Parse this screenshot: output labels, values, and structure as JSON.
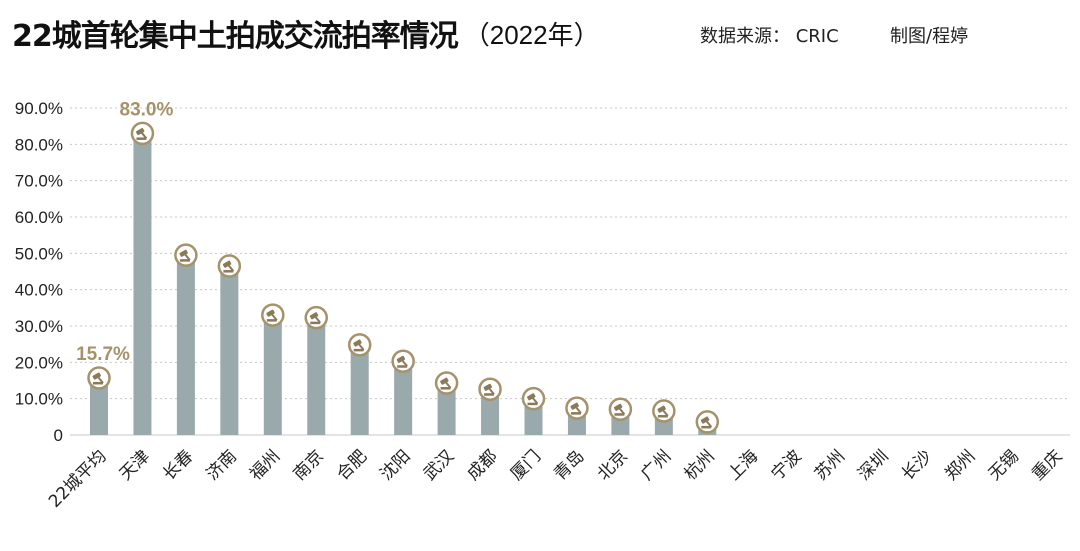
{
  "header": {
    "title": "22城首轮集中土拍成交流拍率情况",
    "year": "（2022年）",
    "source": "数据来源： CRIC",
    "author": "制图/程婷"
  },
  "colors": {
    "bar": "#9aa9ab",
    "highlight_label": "#a6926a",
    "marker_fill": "#ffffff",
    "marker_ring": "#a6926a",
    "marker_icon": "#8a7a5a",
    "grid": "#c8c8c8",
    "axis_text": "#222222"
  },
  "chart_data": {
    "type": "bar",
    "categories": [
      "22城平均",
      "天津",
      "长春",
      "济南",
      "福州",
      "南京",
      "合肥",
      "沈阳",
      "武汉",
      "成都",
      "厦门",
      "青岛",
      "北京",
      "广州",
      "杭州",
      "上海",
      "宁波",
      "苏州",
      "深圳",
      "长沙",
      "郑州",
      "无锡",
      "重庆"
    ],
    "values": [
      15.7,
      83.0,
      49.5,
      46.5,
      33.0,
      32.3,
      24.8,
      20.3,
      14.3,
      12.6,
      10.0,
      7.4,
      7.1,
      6.6,
      3.6,
      0,
      0,
      0,
      0,
      0,
      0,
      0,
      0
    ],
    "data_labels": [
      {
        "index": 0,
        "text": "15.7%"
      },
      {
        "index": 1,
        "text": "83.0%"
      }
    ],
    "yticks": [
      "0",
      "10.0%",
      "20.0%",
      "30.0%",
      "40.0%",
      "50.0%",
      "60.0%",
      "70.0%",
      "80.0%",
      "90.0%"
    ],
    "ylim": [
      0,
      90
    ],
    "grid": true,
    "gavel_icon": "gavel-icon"
  }
}
